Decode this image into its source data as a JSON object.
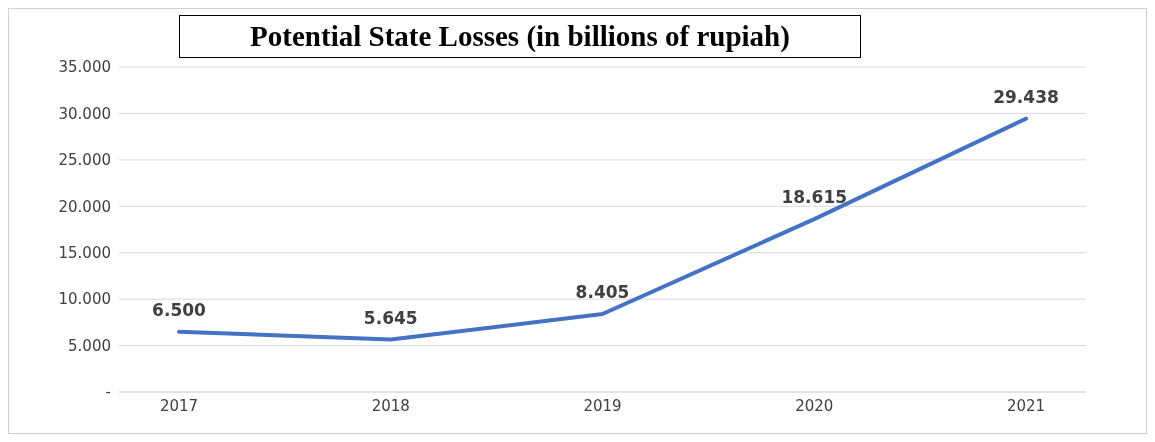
{
  "chart_data": {
    "type": "line",
    "title": "Potential State Losses (in billions of rupiah)",
    "categories": [
      "2017",
      "2018",
      "2019",
      "2020",
      "2021"
    ],
    "series": [
      {
        "color": "#4472c4",
        "values": [
          6500,
          5645,
          8405,
          18615,
          29438
        ],
        "value_labels": [
          "6.500",
          "5.645",
          "8.405",
          "18.615",
          "29.438"
        ]
      }
    ],
    "ylim": [
      0,
      35000
    ],
    "yticks": [
      {
        "value": 0,
        "label": "-"
      },
      {
        "value": 5000,
        "label": "5.000"
      },
      {
        "value": 10000,
        "label": "10.000"
      },
      {
        "value": 15000,
        "label": "15.000"
      },
      {
        "value": 20000,
        "label": "20.000"
      },
      {
        "value": 25000,
        "label": "25.000"
      },
      {
        "value": 30000,
        "label": "30.000"
      },
      {
        "value": 35000,
        "label": "35.000"
      }
    ],
    "grid": "y",
    "marker": "none",
    "line_style": "solid",
    "legend": false
  }
}
